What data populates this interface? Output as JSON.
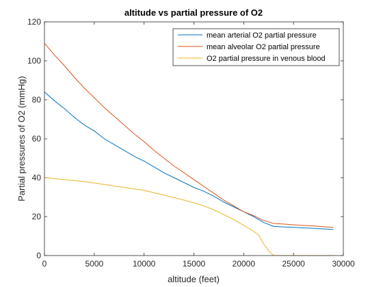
{
  "chart_data": {
    "type": "line",
    "title": "altitude vs partial pressure of O2",
    "xlabel": "altitude (feet)",
    "ylabel": "Partial pressures of O2 (mmHg)",
    "xlim": [
      0,
      30000
    ],
    "ylim": [
      0,
      120
    ],
    "xticks": [
      0,
      5000,
      10000,
      15000,
      20000,
      25000,
      30000
    ],
    "yticks": [
      0,
      20,
      40,
      60,
      80,
      100,
      120
    ],
    "grid": false,
    "legend_position": "top-right",
    "series": [
      {
        "name": "mean arterial O2 partial pressure",
        "color": "#0072BD",
        "x": [
          0,
          1000,
          2000,
          3000,
          4000,
          5000,
          6000,
          7000,
          8000,
          9000,
          10000,
          11000,
          12000,
          13000,
          14000,
          15000,
          16000,
          17000,
          18000,
          19000,
          20000,
          21000,
          22000,
          23000,
          24000,
          25000,
          26000,
          27000,
          28000,
          29000
        ],
        "y": [
          84,
          79.5,
          75.5,
          71,
          67,
          64,
          60,
          57,
          54,
          51,
          48.5,
          45.5,
          42.5,
          40,
          37.5,
          35,
          33,
          30.5,
          27.5,
          25,
          22.5,
          20,
          17,
          15,
          14.7,
          14.5,
          14.2,
          14,
          13.7,
          13.4
        ]
      },
      {
        "name": "mean alveolar O2 partial pressure",
        "color": "#D95319",
        "x": [
          0,
          1000,
          2000,
          3000,
          4000,
          5000,
          6000,
          7000,
          8000,
          9000,
          10000,
          11000,
          12000,
          13000,
          14000,
          15000,
          16000,
          17000,
          18000,
          19000,
          20000,
          21000,
          22000,
          23000,
          24000,
          25000,
          26000,
          27000,
          28000,
          29000
        ],
        "y": [
          109,
          103,
          97.5,
          91.5,
          86,
          81,
          76,
          71.5,
          67,
          62.5,
          58.5,
          54,
          50,
          46,
          42.5,
          39,
          35.5,
          32,
          28.5,
          25.5,
          22.5,
          20.5,
          18,
          16.5,
          16.2,
          15.8,
          15.5,
          15.2,
          14.8,
          14.5
        ]
      },
      {
        "name": "O2 partial pressure in venous blood",
        "color": "#EDB120",
        "x": [
          0,
          2000,
          4000,
          6000,
          8000,
          10000,
          12000,
          14000,
          16000,
          17000,
          18000,
          19000,
          20000,
          21000,
          21500,
          22000,
          22500,
          23000,
          24000,
          25000,
          26000,
          27000,
          28000,
          29000
        ],
        "y": [
          40,
          39,
          38,
          36.5,
          35,
          33.5,
          31,
          28.5,
          25.5,
          23.5,
          21,
          18.5,
          15.5,
          12.5,
          10.5,
          6,
          2.5,
          0,
          0,
          0,
          0,
          0,
          0,
          0
        ]
      }
    ]
  }
}
